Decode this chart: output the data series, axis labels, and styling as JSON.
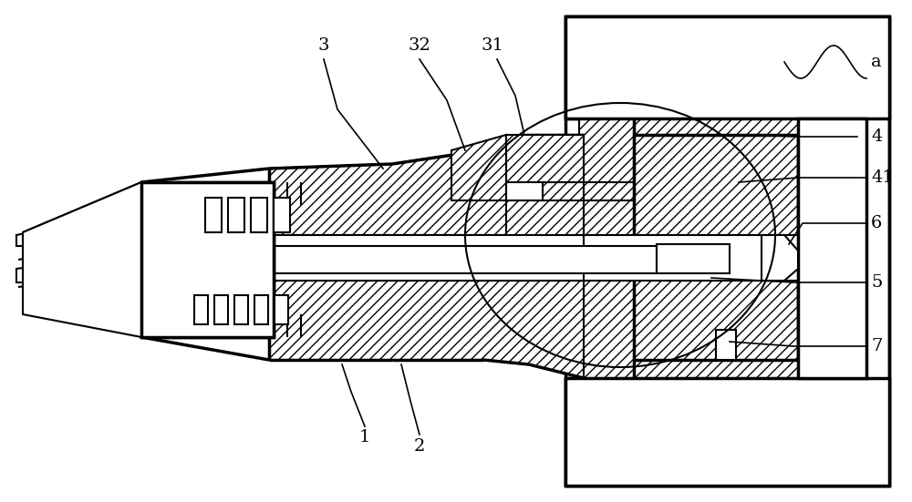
{
  "bg_color": "#ffffff",
  "line_color": "#000000",
  "fig_width": 10.0,
  "fig_height": 5.51,
  "label_fontsize": 14
}
